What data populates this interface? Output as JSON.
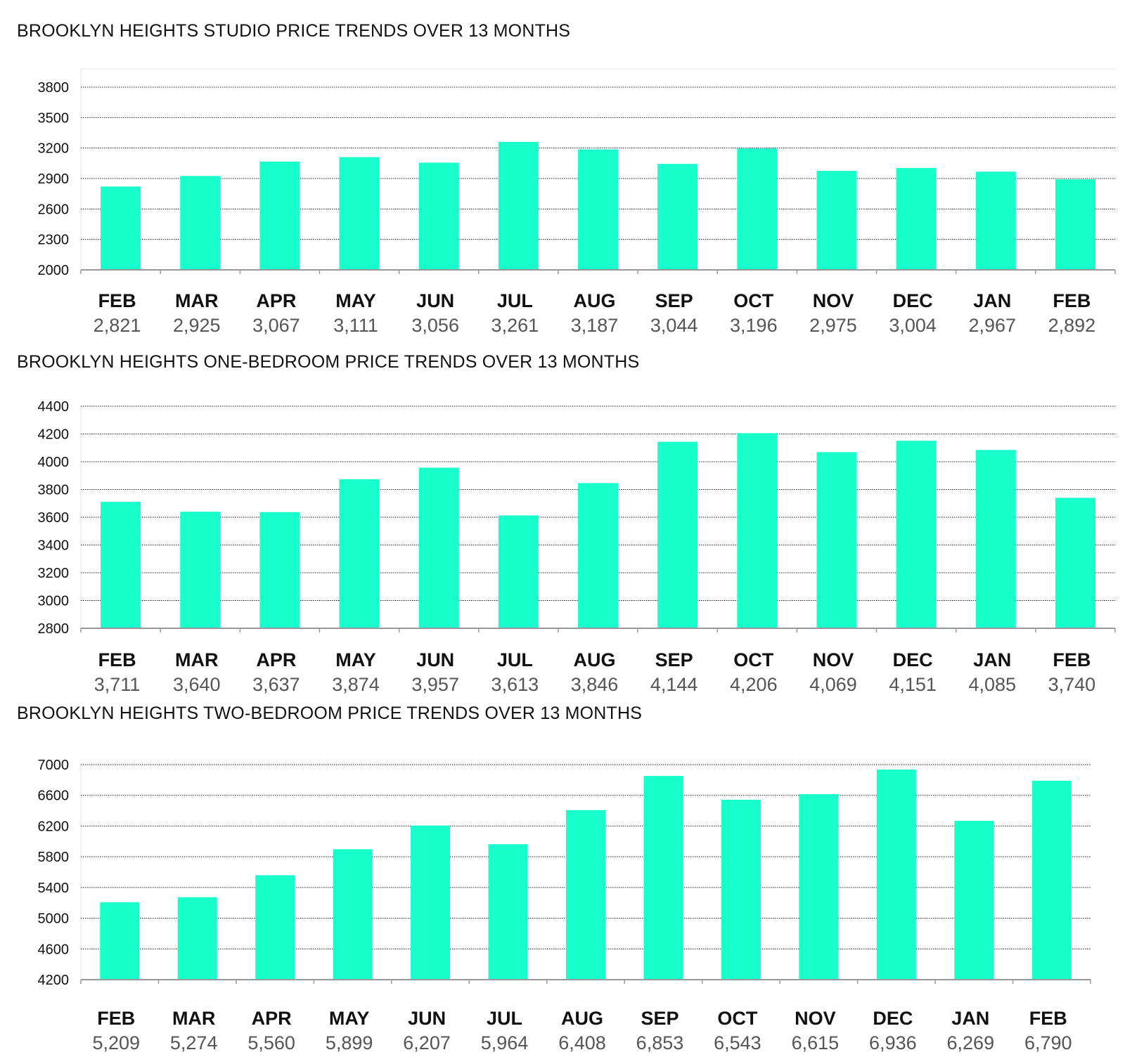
{
  "colors": {
    "bar": "#19ffcc",
    "grid": "#222222",
    "axis": "#999999"
  },
  "chart_data": [
    {
      "type": "bar",
      "title": "BROOKLYN HEIGHTS STUDIO PRICE TRENDS OVER 13 MONTHS",
      "categories": [
        "FEB",
        "MAR",
        "APR",
        "MAY",
        "JUN",
        "JUL",
        "AUG",
        "SEP",
        "OCT",
        "NOV",
        "DEC",
        "JAN",
        "FEB"
      ],
      "values": [
        2821,
        2925,
        3067,
        3111,
        3056,
        3261,
        3187,
        3044,
        3196,
        2975,
        3004,
        2967,
        2892
      ],
      "value_labels": [
        "2,821",
        "2,925",
        "3,067",
        "3,111",
        "3,056",
        "3,261",
        "3,187",
        "3,044",
        "3,196",
        "2,975",
        "3,004",
        "2,967",
        "2,892"
      ],
      "yticks": [
        2000,
        2300,
        2600,
        2900,
        3200,
        3500,
        3800
      ],
      "ylim": [
        2000,
        4000
      ],
      "xlabel": "",
      "ylabel": "",
      "grid": true,
      "legend": "none"
    },
    {
      "type": "bar",
      "title": "BROOKLYN HEIGHTS ONE-BEDROOM PRICE TRENDS OVER 13 MONTHS",
      "categories": [
        "FEB",
        "MAR",
        "APR",
        "MAY",
        "JUN",
        "JUL",
        "AUG",
        "SEP",
        "OCT",
        "NOV",
        "DEC",
        "JAN",
        "FEB"
      ],
      "values": [
        3711,
        3640,
        3637,
        3874,
        3957,
        3613,
        3846,
        4144,
        4206,
        4069,
        4151,
        4085,
        3740
      ],
      "value_labels": [
        "3,711",
        "3,640",
        "3,637",
        "3,874",
        "3,957",
        "3,613",
        "3,846",
        "4,144",
        "4,206",
        "4,069",
        "4,151",
        "4,085",
        "3,740"
      ],
      "yticks": [
        2800,
        3000,
        3200,
        3400,
        3600,
        3800,
        4000,
        4200,
        4400
      ],
      "ylim": [
        2800,
        4400
      ],
      "xlabel": "",
      "ylabel": "",
      "grid": true,
      "legend": "none"
    },
    {
      "type": "bar",
      "title": "BROOKLYN HEIGHTS TWO-BEDROOM PRICE TRENDS OVER 13 MONTHS",
      "categories": [
        "FEB",
        "MAR",
        "APR",
        "MAY",
        "JUN",
        "JUL",
        "AUG",
        "SEP",
        "OCT",
        "NOV",
        "DEC",
        "JAN",
        "FEB"
      ],
      "values": [
        5209,
        5274,
        5560,
        5899,
        6207,
        5964,
        6408,
        6853,
        6543,
        6615,
        6936,
        6269,
        6790
      ],
      "value_labels": [
        "5,209",
        "5,274",
        "5,560",
        "5,899",
        "6,207",
        "5,964",
        "6,408",
        "6,853",
        "6,543",
        "6,615",
        "6,936",
        "6,269",
        "6,790"
      ],
      "yticks": [
        4200,
        4600,
        5000,
        5400,
        5800,
        6200,
        6600,
        7000
      ],
      "ylim": [
        4200,
        7000
      ],
      "xlabel": "",
      "ylabel": "",
      "grid": true,
      "legend": "none"
    }
  ]
}
